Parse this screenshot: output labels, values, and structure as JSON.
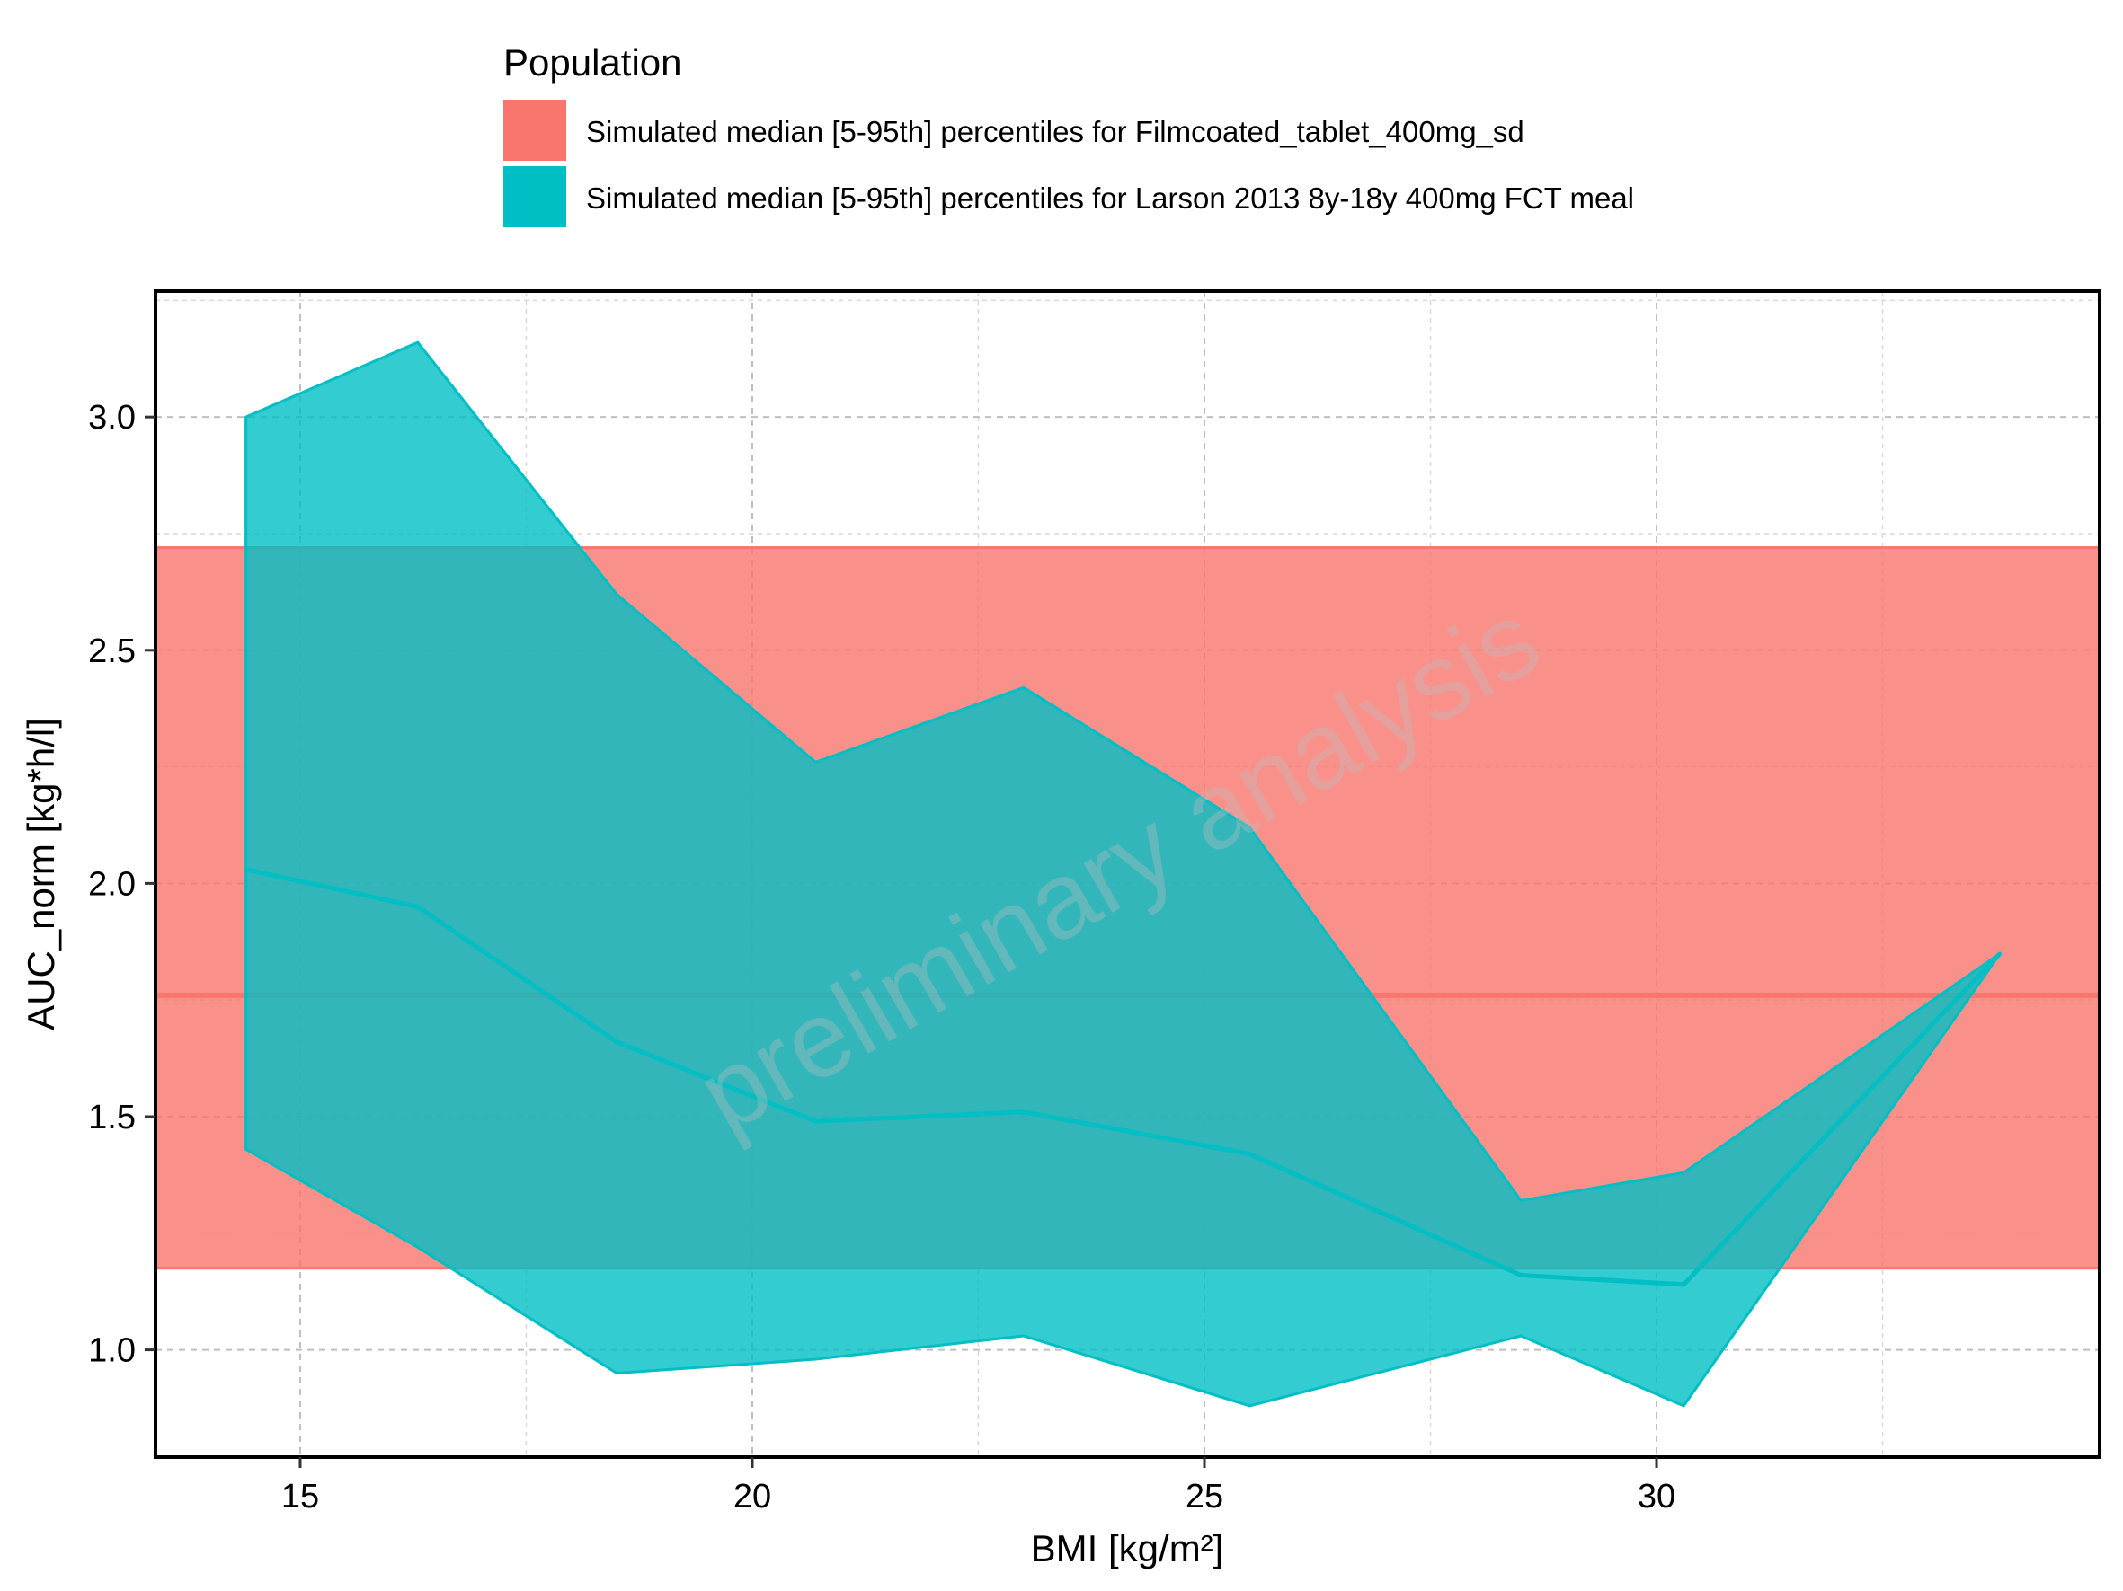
{
  "chart_data": {
    "type": "area",
    "title": "",
    "xlabel": "BMI [kg/m²]",
    "ylabel": "AUC_norm [kg*h/l]",
    "xlim": [
      13.4,
      34.9
    ],
    "ylim": [
      0.77,
      3.27
    ],
    "x_ticks": [
      15,
      20,
      25,
      30
    ],
    "y_ticks": [
      1.0,
      1.5,
      2.0,
      2.5,
      3.0
    ],
    "x_tick_labels": [
      "15",
      "20",
      "25",
      "30"
    ],
    "y_tick_labels": [
      "1.0",
      "1.5",
      "2.0",
      "2.5",
      "3.0"
    ],
    "grid": true,
    "legend_position": "top",
    "legend": {
      "title": "Population",
      "entries": [
        {
          "label": "Simulated median [5-95th] percentiles for Filmcoated_tablet_400mg_sd",
          "color": "#F8766D"
        },
        {
          "label": "Simulated median [5-95th] percentiles for Larson 2013 8y-18y 400mg FCT meal",
          "color": "#00BFC4"
        }
      ]
    },
    "reference_band": {
      "label": "Simulated median [5-95th] percentiles for Filmcoated_tablet_400mg_sd",
      "color": "#F8766D",
      "lower": 1.175,
      "median": 1.76,
      "upper": 2.72
    },
    "series": [
      {
        "label": "Simulated median [5-95th] percentiles for Larson 2013 8y-18y 400mg FCT meal",
        "color": "#00BFC4",
        "x": [
          14.4,
          16.3,
          18.5,
          20.7,
          23.0,
          25.5,
          28.5,
          30.3,
          33.8
        ],
        "median": [
          2.03,
          1.95,
          1.66,
          1.49,
          1.51,
          1.42,
          1.16,
          1.14,
          1.85
        ],
        "lower": [
          1.43,
          1.22,
          0.95,
          0.98,
          1.03,
          0.88,
          1.03,
          0.88,
          1.85
        ],
        "upper": [
          3.0,
          3.16,
          2.62,
          2.26,
          2.42,
          2.12,
          1.32,
          1.38,
          1.85
        ]
      }
    ],
    "watermark": "preliminary analysis"
  }
}
